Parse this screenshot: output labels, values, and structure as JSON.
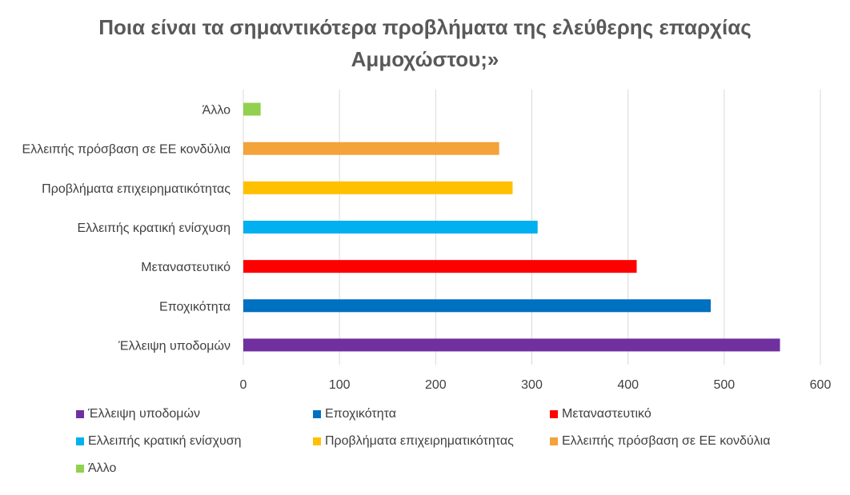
{
  "title_lines": [
    "Ποια είναι τα σημαντικότερα προβλήματα της ελεύθερης επαρχίας",
    "Αμμοχώστου;»"
  ],
  "chart_data": {
    "type": "bar",
    "orientation": "horizontal",
    "title": "Ποια είναι τα σημαντικότερα προβλήματα της ελεύθερης επαρχίας Αμμοχώστου;»",
    "categories": [
      "Έλλειψη υποδομών",
      "Εποχικότητα",
      "Μεταναστευτικό",
      "Ελλειπής κρατική ενίσχυση",
      "Προβλήματα επιχειρηματικότητας",
      "Ελλειπής πρόσβαση σε ΕΕ κονδύλια",
      "Άλλο"
    ],
    "values": [
      558,
      486,
      409,
      306,
      280,
      266,
      18
    ],
    "colors": [
      "#7030A0",
      "#0070C0",
      "#FF0000",
      "#00B0F0",
      "#FFC000",
      "#F4A23A",
      "#92D050"
    ],
    "xlim": [
      0,
      600
    ],
    "ticks": [
      0,
      100,
      200,
      300,
      400,
      500,
      600
    ],
    "grid": true,
    "legend_position": "bottom"
  }
}
